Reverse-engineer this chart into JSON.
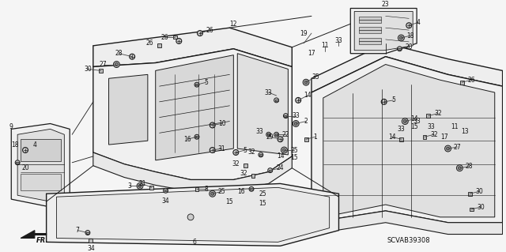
{
  "bg_color": "#f5f5f5",
  "line_color": "#1a1a1a",
  "text_color": "#111111",
  "fig_width": 6.4,
  "fig_height": 3.19,
  "dpi": 100,
  "diagram_code": "SCVAB39308"
}
